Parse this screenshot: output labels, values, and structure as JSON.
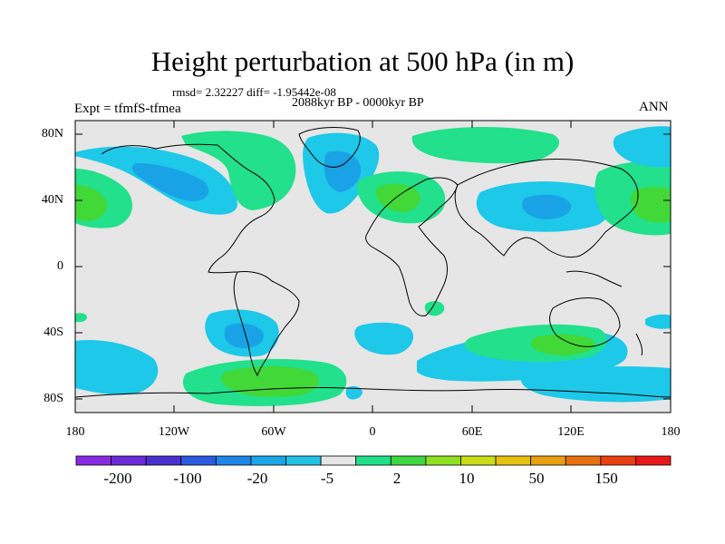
{
  "title": "Height perturbation at 500 hPa (in m)",
  "stats_text": "rmsd= 2.32227 diff= -1.95442e-08",
  "period_text": "2088kyr BP - 0000kyr BP",
  "experiment_text": "Expt = tfmfS-tfmea",
  "season_text": "ANN",
  "axes": {
    "lat_labels": [
      "80N",
      "40N",
      "0",
      "40S",
      "80S"
    ],
    "lon_labels": [
      "180",
      "120W",
      "60W",
      "0",
      "60E",
      "120E",
      "180"
    ]
  },
  "colorbar": {
    "labels": [
      "-200",
      "-100",
      "-20",
      "-5",
      "2",
      "10",
      "50",
      "150"
    ],
    "colors": [
      "#8a2be2",
      "#6a2ad8",
      "#4b30d0",
      "#2a5ae0",
      "#1e86e6",
      "#1aa6e8",
      "#22c2e6",
      "#e6e6e6",
      "#20e08a",
      "#40d840",
      "#8ee020",
      "#c8dc18",
      "#e8c010",
      "#e8a010",
      "#e87010",
      "#e84010",
      "#e81818"
    ]
  },
  "colors": {
    "background_map": "#e6e6e6",
    "negative_light": "#1ec8e8",
    "negative_medium": "#1aa2e6",
    "positive_light": "#22e08c",
    "positive_medium": "#42d838"
  }
}
